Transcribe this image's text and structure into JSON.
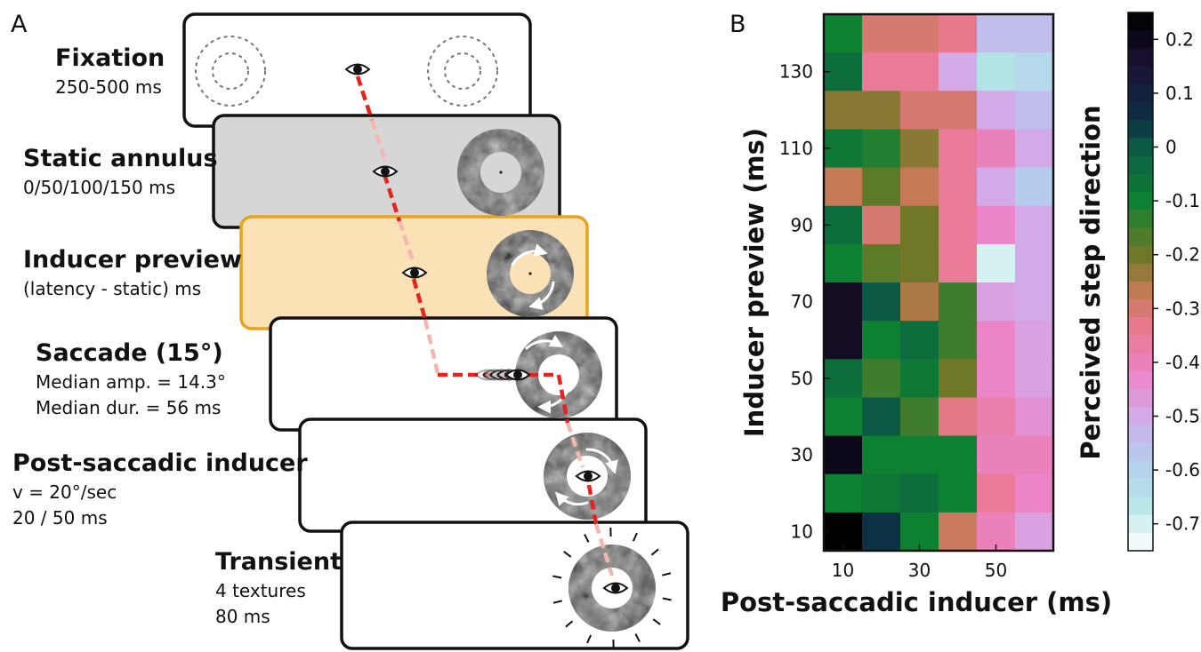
{
  "panel_a": {
    "letter": "A",
    "stages": [
      {
        "title": "Fixation",
        "lines": [
          "250-500 ms"
        ]
      },
      {
        "title": "Static annulus",
        "lines": [
          "0/50/100/150 ms"
        ]
      },
      {
        "title": "Inducer preview",
        "lines": [
          "(latency - static) ms"
        ]
      },
      {
        "title": "Saccade (15°)",
        "lines": [
          "Median amp. = 14.3°",
          "Median dur. = 56 ms"
        ]
      },
      {
        "title": "Post-saccadic inducer",
        "lines": [
          "v = 20°/sec",
          "20 / 50 ms"
        ]
      },
      {
        "title": "Transient",
        "lines": [
          "4 textures",
          "80 ms"
        ]
      }
    ],
    "colors": {
      "static_fill": "#d6d6d6",
      "preview_fill": "#fbe2b6",
      "preview_border": "#e8a21c",
      "gaze_path": "#e8231f",
      "gaze_path_faded": "#f2b8b0"
    },
    "icons": [
      "eye-icon",
      "dashed-ring-icon",
      "texture-annulus-icon",
      "rotation-arrow-icon",
      "flash-ticks-icon"
    ]
  },
  "chart_data": {
    "type": "heatmap",
    "panel_letter": "B",
    "xlabel": "Post-saccadic inducer (ms)",
    "ylabel": "Inducer preview (ms)",
    "colorbar_label": "Perceived step direction",
    "x_tick_labels": [
      "10",
      "30",
      "50"
    ],
    "y_tick_labels": [
      "130",
      "110",
      "90",
      "70",
      "50",
      "30",
      "10"
    ],
    "colorbar_tick_labels": [
      "0.2",
      "0.1",
      "0",
      "-0.1",
      "-0.2",
      "-0.3",
      "-0.4",
      "-0.5",
      "-0.6",
      "-0.7"
    ],
    "columns": [
      10,
      20,
      30,
      40,
      50,
      60
    ],
    "rows": [
      140,
      130,
      120,
      110,
      100,
      90,
      80,
      70,
      60,
      50,
      40,
      30,
      20,
      10
    ],
    "color_range": [
      -0.75,
      0.25
    ],
    "values": [
      [
        -0.1,
        -0.3,
        -0.3,
        -0.33,
        -0.55,
        -0.55
      ],
      [
        -0.05,
        -0.35,
        -0.35,
        -0.5,
        -0.65,
        -0.62
      ],
      [
        -0.22,
        -0.22,
        -0.3,
        -0.3,
        -0.5,
        -0.55
      ],
      [
        -0.08,
        -0.12,
        -0.22,
        -0.35,
        -0.4,
        -0.5
      ],
      [
        -0.27,
        -0.18,
        -0.27,
        -0.35,
        -0.5,
        -0.58
      ],
      [
        -0.05,
        -0.3,
        -0.2,
        -0.35,
        -0.42,
        -0.5
      ],
      [
        -0.1,
        -0.18,
        -0.2,
        -0.35,
        -0.7,
        -0.5
      ],
      [
        0.18,
        0.0,
        -0.25,
        -0.15,
        -0.48,
        -0.5
      ],
      [
        0.18,
        -0.1,
        -0.05,
        -0.15,
        -0.42,
        -0.48
      ],
      [
        -0.05,
        -0.15,
        -0.08,
        -0.2,
        -0.42,
        -0.48
      ],
      [
        -0.1,
        0.0,
        -0.15,
        -0.32,
        -0.38,
        -0.45
      ],
      [
        0.2,
        -0.1,
        -0.1,
        -0.1,
        -0.4,
        -0.4
      ],
      [
        -0.1,
        -0.08,
        -0.05,
        -0.1,
        -0.35,
        -0.42
      ],
      [
        0.25,
        0.05,
        -0.1,
        -0.28,
        -0.4,
        -0.48
      ]
    ]
  }
}
